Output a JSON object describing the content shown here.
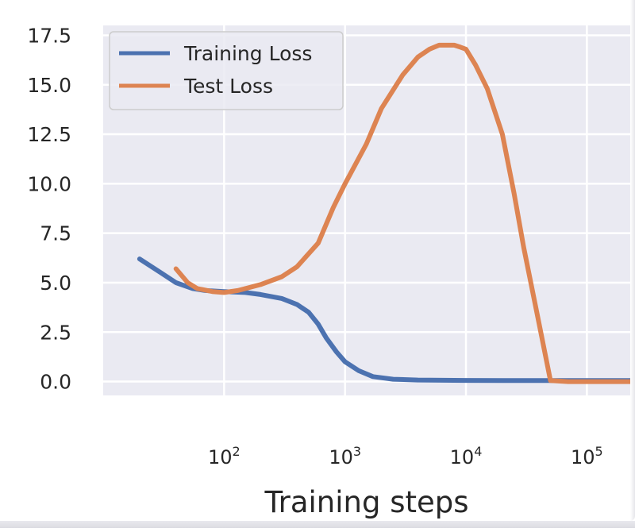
{
  "chart_data": {
    "type": "line",
    "title": "",
    "xlabel": "Training steps",
    "ylabel": "",
    "x_scale": "log",
    "xlim": [
      10,
      250000
    ],
    "ylim": [
      -0.7,
      18.0
    ],
    "grid": true,
    "legend_position": "top-left",
    "x_ticks": [
      {
        "value": 100,
        "base": "10",
        "exp": "2"
      },
      {
        "value": 1000,
        "base": "10",
        "exp": "3"
      },
      {
        "value": 10000,
        "base": "10",
        "exp": "4"
      },
      {
        "value": 100000,
        "base": "10",
        "exp": "5"
      }
    ],
    "y_ticks": [
      {
        "value": 0.0,
        "label": "0.0"
      },
      {
        "value": 2.5,
        "label": "2.5"
      },
      {
        "value": 5.0,
        "label": "5.0"
      },
      {
        "value": 7.5,
        "label": "7.5"
      },
      {
        "value": 10.0,
        "label": "10.0"
      },
      {
        "value": 12.5,
        "label": "12.5"
      },
      {
        "value": 15.0,
        "label": "15.0"
      },
      {
        "value": 17.5,
        "label": "17.5"
      }
    ],
    "series": [
      {
        "name": "Training Loss",
        "color": "#4c72b0",
        "x": [
          20,
          30,
          40,
          55,
          70,
          100,
          150,
          200,
          300,
          400,
          500,
          600,
          700,
          850,
          1000,
          1300,
          1700,
          2500,
          4000,
          10000,
          30000,
          100000,
          250000
        ],
        "y": [
          6.2,
          5.5,
          5.0,
          4.7,
          4.6,
          4.55,
          4.5,
          4.4,
          4.2,
          3.9,
          3.5,
          2.9,
          2.2,
          1.5,
          1.0,
          0.55,
          0.25,
          0.12,
          0.08,
          0.06,
          0.05,
          0.05,
          0.05
        ]
      },
      {
        "name": "Test Loss",
        "color": "#dd8452",
        "x": [
          40,
          50,
          60,
          80,
          100,
          130,
          200,
          300,
          400,
          600,
          800,
          1000,
          1500,
          2000,
          3000,
          4000,
          5000,
          6000,
          7000,
          8000,
          9000,
          10000,
          12000,
          15000,
          20000,
          25000,
          30000,
          40000,
          50000,
          70000,
          100000,
          250000
        ],
        "y": [
          5.7,
          5.0,
          4.7,
          4.55,
          4.5,
          4.6,
          4.9,
          5.3,
          5.8,
          7.0,
          8.8,
          10.0,
          12.0,
          13.8,
          15.5,
          16.4,
          16.8,
          17.0,
          17.0,
          17.0,
          16.9,
          16.8,
          16.0,
          14.8,
          12.5,
          9.5,
          6.8,
          3.0,
          0.05,
          0.0,
          0.0,
          0.0
        ]
      }
    ]
  }
}
